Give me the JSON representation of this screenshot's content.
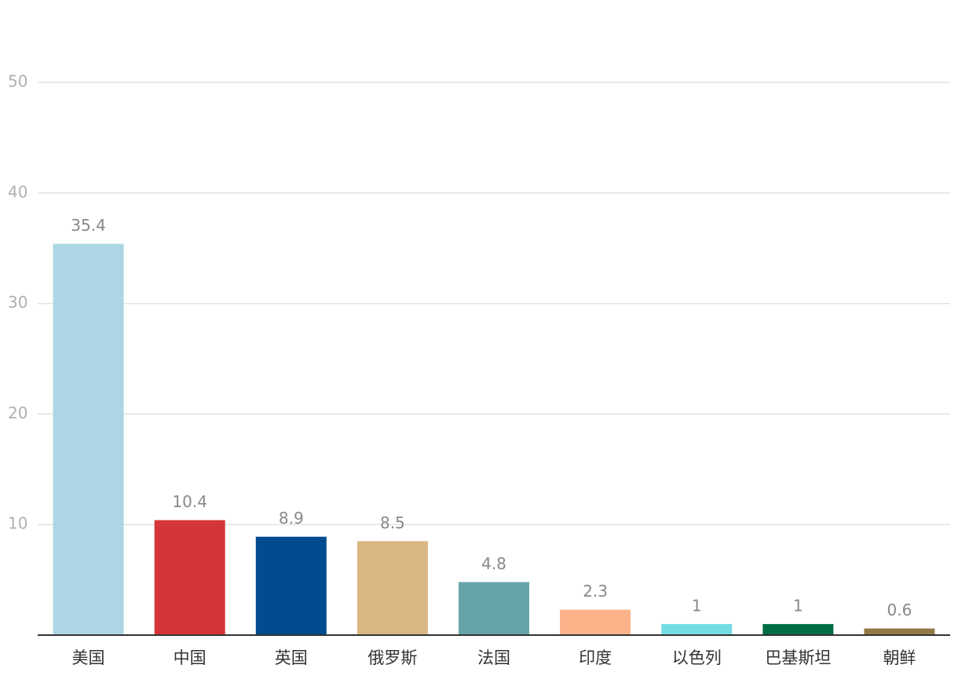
{
  "chart_data": {
    "type": "bar",
    "categories": [
      "美国",
      "中国",
      "英国",
      "俄罗斯",
      "法国",
      "印度",
      "以色列",
      "巴基斯坦",
      "朝鲜"
    ],
    "values": [
      35.4,
      10.4,
      8.9,
      8.5,
      4.8,
      2.3,
      1,
      1,
      0.6
    ],
    "colors": [
      "#acd6e3",
      "#d43537",
      "#004c8f",
      "#d9b683",
      "#66a4aa",
      "#fdb389",
      "#73dce3",
      "#006c44",
      "#947948"
    ],
    "ylim": [
      0,
      50
    ],
    "yticks": [
      10,
      20,
      30,
      40,
      50
    ],
    "grid": true
  }
}
